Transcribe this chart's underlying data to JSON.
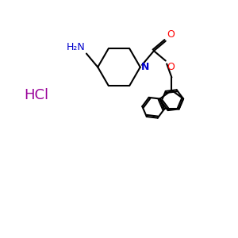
{
  "background_color": "#ffffff",
  "line_color": "#000000",
  "nitrogen_color": "#0000cc",
  "oxygen_color": "#ff0000",
  "hcl_color": "#990099",
  "hcl_text": "HCl",
  "nh2_text": "H₂N",
  "N_text": "N",
  "O_text": "O",
  "figsize": [
    3.0,
    3.0
  ],
  "dpi": 100
}
